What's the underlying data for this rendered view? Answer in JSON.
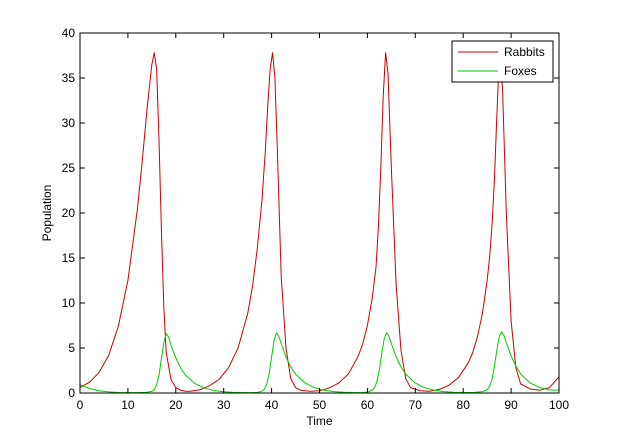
{
  "chart_data": {
    "type": "line",
    "title": "",
    "xlabel": "Time",
    "ylabel": "Population",
    "xlim": [
      0,
      100
    ],
    "ylim": [
      0,
      40
    ],
    "xticks": [
      0,
      10,
      20,
      30,
      40,
      50,
      60,
      70,
      80,
      90,
      100
    ],
    "yticks": [
      0,
      5,
      10,
      15,
      20,
      25,
      30,
      35,
      40
    ],
    "grid": false,
    "legend": {
      "position": "top-right",
      "entries": [
        "Rabbits",
        "Foxes"
      ]
    },
    "series": [
      {
        "name": "Rabbits",
        "color": "#cc0000",
        "x": [
          0,
          2,
          4,
          6,
          8,
          10,
          12,
          13,
          14,
          15,
          15.5,
          16,
          16.5,
          17,
          17.5,
          18,
          19,
          20,
          21,
          22,
          23,
          25,
          27,
          29,
          31,
          33,
          35,
          36,
          37,
          38,
          38.7,
          39.2,
          39.7,
          40.2,
          40.7,
          41.2,
          42,
          43,
          44,
          45,
          46,
          48,
          50,
          52,
          54,
          56,
          58,
          59,
          60,
          61,
          61.8,
          62.3,
          62.8,
          63.3,
          63.8,
          64.3,
          65,
          66,
          67,
          68,
          69,
          71,
          73,
          75,
          77,
          79,
          81,
          82,
          83,
          84,
          85,
          85.5,
          86,
          86.5,
          87,
          87.5,
          88.2,
          89,
          90,
          91,
          92,
          94,
          96,
          98,
          100
        ],
        "values": [
          0.6,
          1.2,
          2.3,
          4.2,
          7.4,
          12.5,
          20.5,
          25.8,
          31.6,
          36.5,
          37.8,
          36.0,
          28.0,
          18.0,
          9.5,
          4.5,
          1.5,
          0.6,
          0.3,
          0.2,
          0.2,
          0.35,
          0.8,
          1.5,
          2.8,
          5.0,
          8.8,
          11.8,
          16.0,
          21.5,
          27.0,
          32.0,
          36.0,
          37.8,
          35.0,
          27.0,
          13.0,
          5.0,
          1.6,
          0.6,
          0.3,
          0.2,
          0.25,
          0.55,
          1.1,
          2.1,
          4.0,
          5.4,
          7.5,
          10.5,
          14.0,
          18.5,
          25.0,
          33.0,
          37.8,
          35.5,
          25.0,
          12.0,
          4.8,
          1.6,
          0.6,
          0.25,
          0.2,
          0.4,
          0.85,
          1.7,
          3.3,
          4.5,
          6.3,
          8.8,
          12.5,
          15.0,
          18.5,
          23.5,
          30.5,
          37.0,
          34.0,
          20.0,
          8.0,
          2.8,
          1.0,
          0.45,
          0.3,
          0.6,
          1.8
        ]
      },
      {
        "name": "Foxes",
        "color": "#00cc00",
        "x": [
          0,
          2,
          4,
          6,
          8,
          10,
          12,
          14,
          15,
          15.5,
          16,
          16.5,
          17,
          17.5,
          18,
          18.5,
          19,
          20,
          21,
          22,
          24,
          26,
          28,
          30,
          32,
          34,
          36,
          37,
          38,
          38.5,
          39,
          39.5,
          40,
          40.5,
          41,
          41.5,
          42,
          43,
          44,
          45,
          47,
          49,
          51,
          53,
          55,
          57,
          59,
          60,
          61,
          61.5,
          62,
          62.5,
          63,
          63.5,
          64,
          64.5,
          65,
          66,
          67,
          68,
          70,
          72,
          74,
          76,
          78,
          80,
          82,
          84,
          85,
          85.5,
          86,
          86.5,
          87,
          87.5,
          88,
          88.5,
          89,
          90,
          91,
          92,
          94,
          96,
          98,
          100
        ],
        "values": [
          0.9,
          0.5,
          0.25,
          0.12,
          0.06,
          0.04,
          0.04,
          0.08,
          0.2,
          0.4,
          0.9,
          2.0,
          3.8,
          5.6,
          6.6,
          6.2,
          5.3,
          3.9,
          2.8,
          2.0,
          1.05,
          0.55,
          0.28,
          0.14,
          0.07,
          0.04,
          0.04,
          0.07,
          0.2,
          0.45,
          1.0,
          2.2,
          4.0,
          5.8,
          6.7,
          6.3,
          5.5,
          4.0,
          2.9,
          2.1,
          1.1,
          0.58,
          0.3,
          0.15,
          0.08,
          0.04,
          0.05,
          0.1,
          0.3,
          0.6,
          1.3,
          2.6,
          4.4,
          6.0,
          6.7,
          6.3,
          5.5,
          4.0,
          2.9,
          2.1,
          1.1,
          0.58,
          0.3,
          0.15,
          0.08,
          0.05,
          0.05,
          0.15,
          0.35,
          0.7,
          1.5,
          2.9,
          4.7,
          6.2,
          6.8,
          6.4,
          5.6,
          4.1,
          3.0,
          2.1,
          1.1,
          0.6,
          0.35,
          0.3
        ]
      }
    ]
  }
}
